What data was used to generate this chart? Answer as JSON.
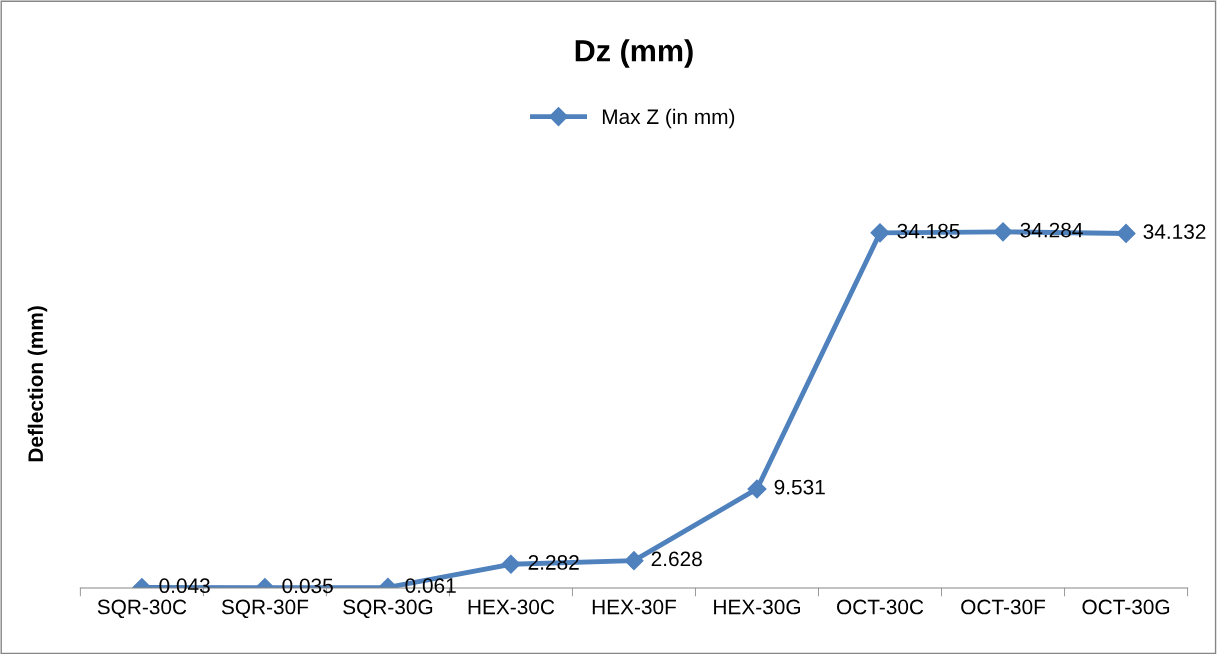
{
  "chart_data": {
    "type": "line",
    "title": "Dz (mm)",
    "ylabel": "Deflection (mm)",
    "categories": [
      "SQR-30C",
      "SQR-30F",
      "SQR-30G",
      "HEX-30C",
      "HEX-30F",
      "HEX-30G",
      "OCT-30C",
      "OCT-30F",
      "OCT-30G"
    ],
    "series": [
      {
        "name": "Max Z (in mm)",
        "color": "#4f81bd",
        "values": [
          0.043,
          0.035,
          0.061,
          2.282,
          2.628,
          9.531,
          34.185,
          34.284,
          34.132
        ]
      }
    ],
    "data_labels": true,
    "marker": "diamond",
    "line_style": "solid",
    "legend": "top",
    "grid": false,
    "tick_labels": "x"
  }
}
